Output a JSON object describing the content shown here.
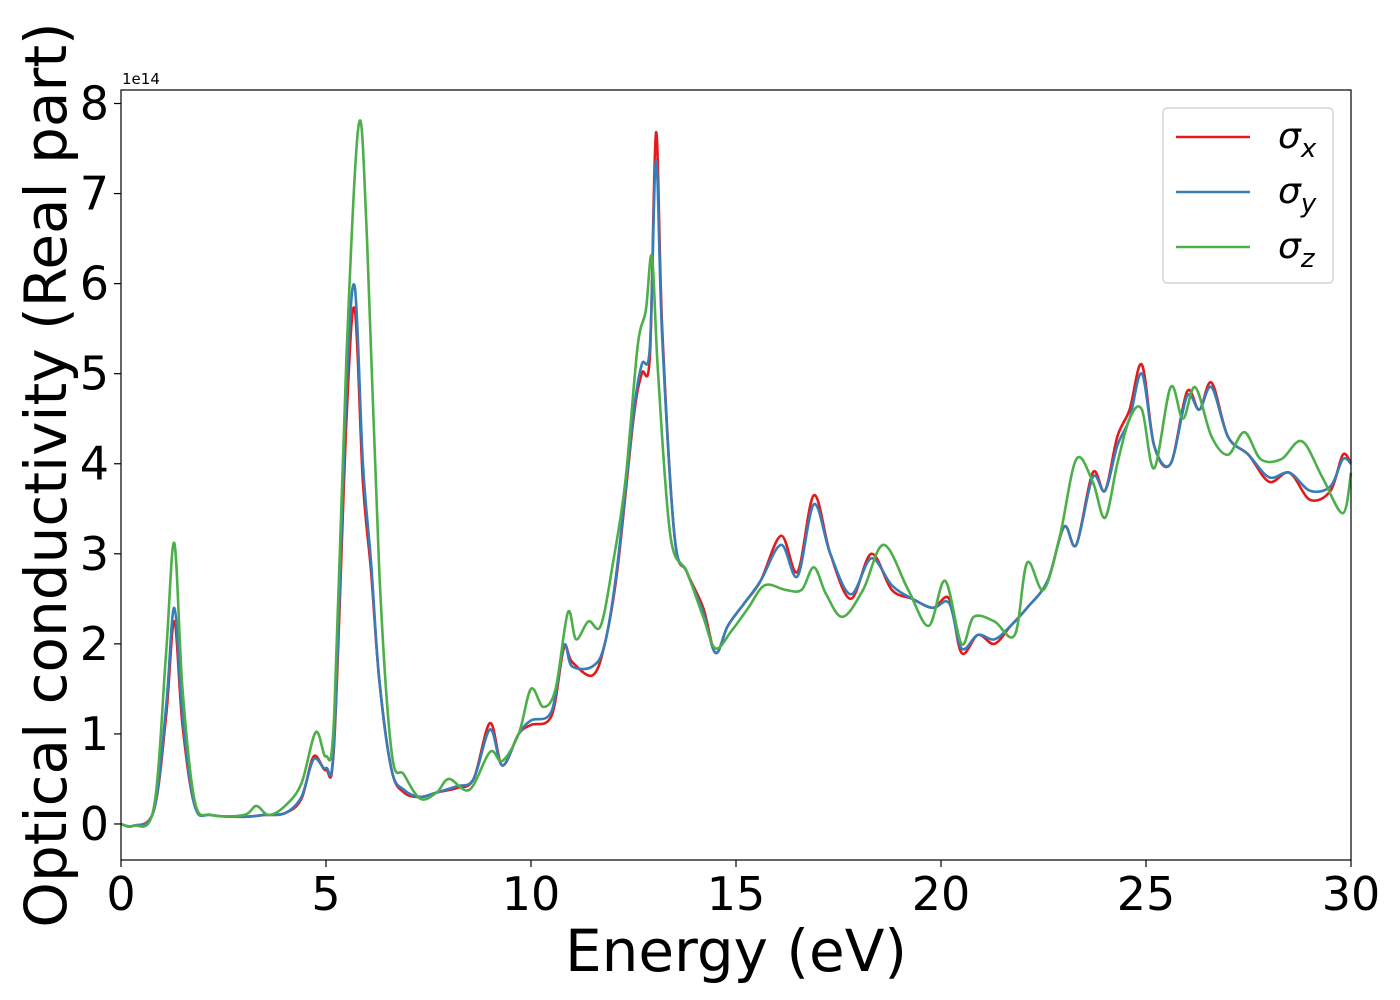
{
  "chart_data": {
    "type": "line",
    "xlabel": "Energy (eV)",
    "ylabel": "Optical conductivity (Real part)",
    "y_offset_text": "1e14",
    "y_scale": 100000000000000.0,
    "xlim": [
      0,
      30
    ],
    "ylim": [
      -0.4,
      8.15
    ],
    "xticks": [
      0,
      5,
      10,
      15,
      20,
      25,
      30
    ],
    "yticks": [
      0,
      1,
      2,
      3,
      4,
      5,
      6,
      7,
      8
    ],
    "grid": false,
    "legend_position": "top-right",
    "series": [
      {
        "name": "σx",
        "legend_base": "σ",
        "legend_sub": "x",
        "color": "#e41a1c",
        "x": [
          0,
          0.3,
          0.8,
          1.1,
          1.3,
          1.5,
          1.8,
          2.2,
          3,
          3.5,
          4,
          4.4,
          4.7,
          5.0,
          5.2,
          5.5,
          5.7,
          5.9,
          6.1,
          6.3,
          6.6,
          6.9,
          7.3,
          7.7,
          8.2,
          8.6,
          9.0,
          9.3,
          9.7,
          10.0,
          10.5,
          10.8,
          11.0,
          11.5,
          11.8,
          12.1,
          12.5,
          12.7,
          12.9,
          13.05,
          13.2,
          13.5,
          13.8,
          14.2,
          14.5,
          14.8,
          15.2,
          15.6,
          16.1,
          16.5,
          16.9,
          17.3,
          17.8,
          18.3,
          18.8,
          19.3,
          19.8,
          20.2,
          20.5,
          20.9,
          21.3,
          21.7,
          22.1,
          22.6,
          23.0,
          23.3,
          23.7,
          24.0,
          24.3,
          24.6,
          24.9,
          25.2,
          25.6,
          26.0,
          26.3,
          26.6,
          27.0,
          27.5,
          28.0,
          28.5,
          29.0,
          29.5,
          29.8,
          30
        ],
        "y": [
          0,
          -0.02,
          0.15,
          1.2,
          2.25,
          1.1,
          0.2,
          0.1,
          0.08,
          0.1,
          0.12,
          0.28,
          0.75,
          0.6,
          0.9,
          4.5,
          5.72,
          3.8,
          2.8,
          1.6,
          0.6,
          0.35,
          0.3,
          0.35,
          0.4,
          0.5,
          1.12,
          0.65,
          1.0,
          1.1,
          1.2,
          1.95,
          1.8,
          1.65,
          2.0,
          2.8,
          4.5,
          5.0,
          5.2,
          7.68,
          5.5,
          3.2,
          2.8,
          2.4,
          1.9,
          2.2,
          2.45,
          2.7,
          3.2,
          2.8,
          3.65,
          3.0,
          2.5,
          3.0,
          2.6,
          2.5,
          2.4,
          2.5,
          1.9,
          2.1,
          2.0,
          2.2,
          2.4,
          2.7,
          3.3,
          3.1,
          3.9,
          3.7,
          4.3,
          4.6,
          5.1,
          4.2,
          4.0,
          4.8,
          4.6,
          4.9,
          4.3,
          4.1,
          3.8,
          3.9,
          3.6,
          3.7,
          4.1,
          4.0
        ]
      },
      {
        "name": "σy",
        "legend_base": "σ",
        "legend_sub": "y",
        "color": "#377eb8",
        "x": [
          0,
          0.3,
          0.8,
          1.1,
          1.3,
          1.5,
          1.8,
          2.2,
          3,
          3.5,
          4,
          4.4,
          4.7,
          5.0,
          5.2,
          5.5,
          5.7,
          5.9,
          6.1,
          6.3,
          6.6,
          6.9,
          7.3,
          7.7,
          8.2,
          8.6,
          9.0,
          9.3,
          9.7,
          10.0,
          10.5,
          10.8,
          11.0,
          11.5,
          11.8,
          12.1,
          12.5,
          12.7,
          12.9,
          13.05,
          13.2,
          13.5,
          13.8,
          14.2,
          14.5,
          14.8,
          15.2,
          15.6,
          16.1,
          16.5,
          16.9,
          17.3,
          17.8,
          18.3,
          18.8,
          19.3,
          19.8,
          20.2,
          20.5,
          20.9,
          21.3,
          21.7,
          22.1,
          22.6,
          23.0,
          23.3,
          23.7,
          24.0,
          24.3,
          24.6,
          24.9,
          25.2,
          25.6,
          26.0,
          26.3,
          26.6,
          27.0,
          27.5,
          28.0,
          28.5,
          29.0,
          29.5,
          29.8,
          30
        ],
        "y": [
          0,
          -0.02,
          0.15,
          1.3,
          2.4,
          1.2,
          0.2,
          0.1,
          0.08,
          0.1,
          0.12,
          0.3,
          0.72,
          0.62,
          0.95,
          4.8,
          5.97,
          4.0,
          2.9,
          1.6,
          0.6,
          0.38,
          0.3,
          0.35,
          0.42,
          0.5,
          1.05,
          0.65,
          1.0,
          1.15,
          1.25,
          1.98,
          1.75,
          1.75,
          2.0,
          2.85,
          4.55,
          5.1,
          5.3,
          7.37,
          5.4,
          3.2,
          2.8,
          2.35,
          1.9,
          2.2,
          2.45,
          2.7,
          3.1,
          2.75,
          3.55,
          3.0,
          2.55,
          2.95,
          2.65,
          2.5,
          2.4,
          2.45,
          1.95,
          2.1,
          2.05,
          2.2,
          2.4,
          2.7,
          3.3,
          3.1,
          3.85,
          3.7,
          4.2,
          4.5,
          5.0,
          4.2,
          4.0,
          4.75,
          4.6,
          4.85,
          4.3,
          4.1,
          3.85,
          3.9,
          3.7,
          3.75,
          4.05,
          4.0
        ]
      },
      {
        "name": "σz",
        "legend_base": "σ",
        "legend_sub": "z",
        "color": "#4daf4a",
        "x": [
          0,
          0.3,
          0.8,
          1.1,
          1.3,
          1.5,
          1.8,
          2.2,
          3,
          3.3,
          3.6,
          4,
          4.4,
          4.75,
          5.0,
          5.2,
          5.5,
          5.8,
          6.0,
          6.3,
          6.6,
          6.9,
          7.3,
          7.7,
          8.0,
          8.5,
          9.0,
          9.3,
          9.7,
          10.0,
          10.3,
          10.6,
          10.9,
          11.1,
          11.4,
          11.7,
          12.0,
          12.3,
          12.6,
          12.8,
          12.95,
          13.1,
          13.4,
          13.8,
          14.2,
          14.5,
          14.9,
          15.3,
          15.7,
          16.2,
          16.6,
          16.9,
          17.2,
          17.6,
          18.1,
          18.6,
          19.2,
          19.7,
          20.1,
          20.5,
          20.8,
          21.3,
          21.8,
          22.1,
          22.5,
          22.9,
          23.3,
          23.7,
          24.0,
          24.3,
          24.6,
          24.9,
          25.2,
          25.6,
          25.9,
          26.2,
          26.6,
          27.0,
          27.4,
          27.8,
          28.3,
          28.8,
          29.3,
          29.8,
          30
        ],
        "y": [
          0,
          -0.02,
          0.18,
          1.9,
          3.12,
          1.5,
          0.25,
          0.1,
          0.1,
          0.2,
          0.1,
          0.2,
          0.45,
          1.02,
          0.75,
          1.2,
          5.2,
          7.77,
          6.5,
          2.8,
          0.8,
          0.55,
          0.28,
          0.35,
          0.5,
          0.38,
          0.8,
          0.7,
          1.0,
          1.5,
          1.3,
          1.5,
          2.35,
          2.05,
          2.25,
          2.2,
          2.9,
          3.8,
          5.3,
          5.7,
          6.3,
          5.0,
          3.2,
          2.8,
          2.3,
          1.95,
          2.15,
          2.4,
          2.65,
          2.6,
          2.6,
          2.85,
          2.55,
          2.3,
          2.6,
          3.1,
          2.6,
          2.2,
          2.7,
          2.0,
          2.3,
          2.25,
          2.1,
          2.9,
          2.6,
          3.2,
          4.05,
          3.8,
          3.4,
          4.0,
          4.5,
          4.6,
          3.95,
          4.85,
          4.5,
          4.85,
          4.3,
          4.1,
          4.35,
          4.05,
          4.05,
          4.25,
          3.85,
          3.45,
          3.9
        ]
      }
    ]
  }
}
